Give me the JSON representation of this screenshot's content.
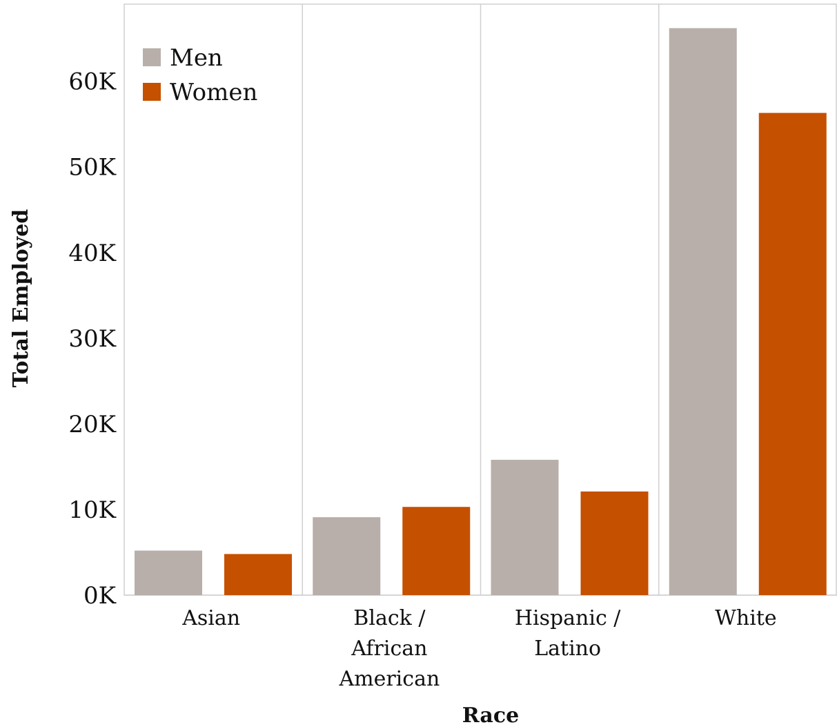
{
  "chart_data": {
    "type": "bar",
    "title": "",
    "xlabel": "Race",
    "ylabel": "Total Employed",
    "categories": [
      [
        "Asian"
      ],
      [
        "Black /",
        "African",
        "American"
      ],
      [
        "Hispanic /",
        "Latino"
      ],
      [
        "White"
      ]
    ],
    "series": [
      {
        "name": "Men",
        "color": "#b8afaa",
        "values": [
          5200,
          9100,
          15800,
          66200
        ]
      },
      {
        "name": "Women",
        "color": "#c55000",
        "values": [
          4800,
          10300,
          12100,
          56300
        ]
      }
    ],
    "ylim": [
      0,
      69000
    ],
    "yticks": [
      {
        "value": 0,
        "label": "0K"
      },
      {
        "value": 10000,
        "label": "10K"
      },
      {
        "value": 20000,
        "label": "20K"
      },
      {
        "value": 30000,
        "label": "30K"
      },
      {
        "value": 40000,
        "label": "40K"
      },
      {
        "value": 50000,
        "label": "50K"
      },
      {
        "value": 60000,
        "label": "60K"
      }
    ],
    "legend_position": "top-left",
    "grid": false
  }
}
